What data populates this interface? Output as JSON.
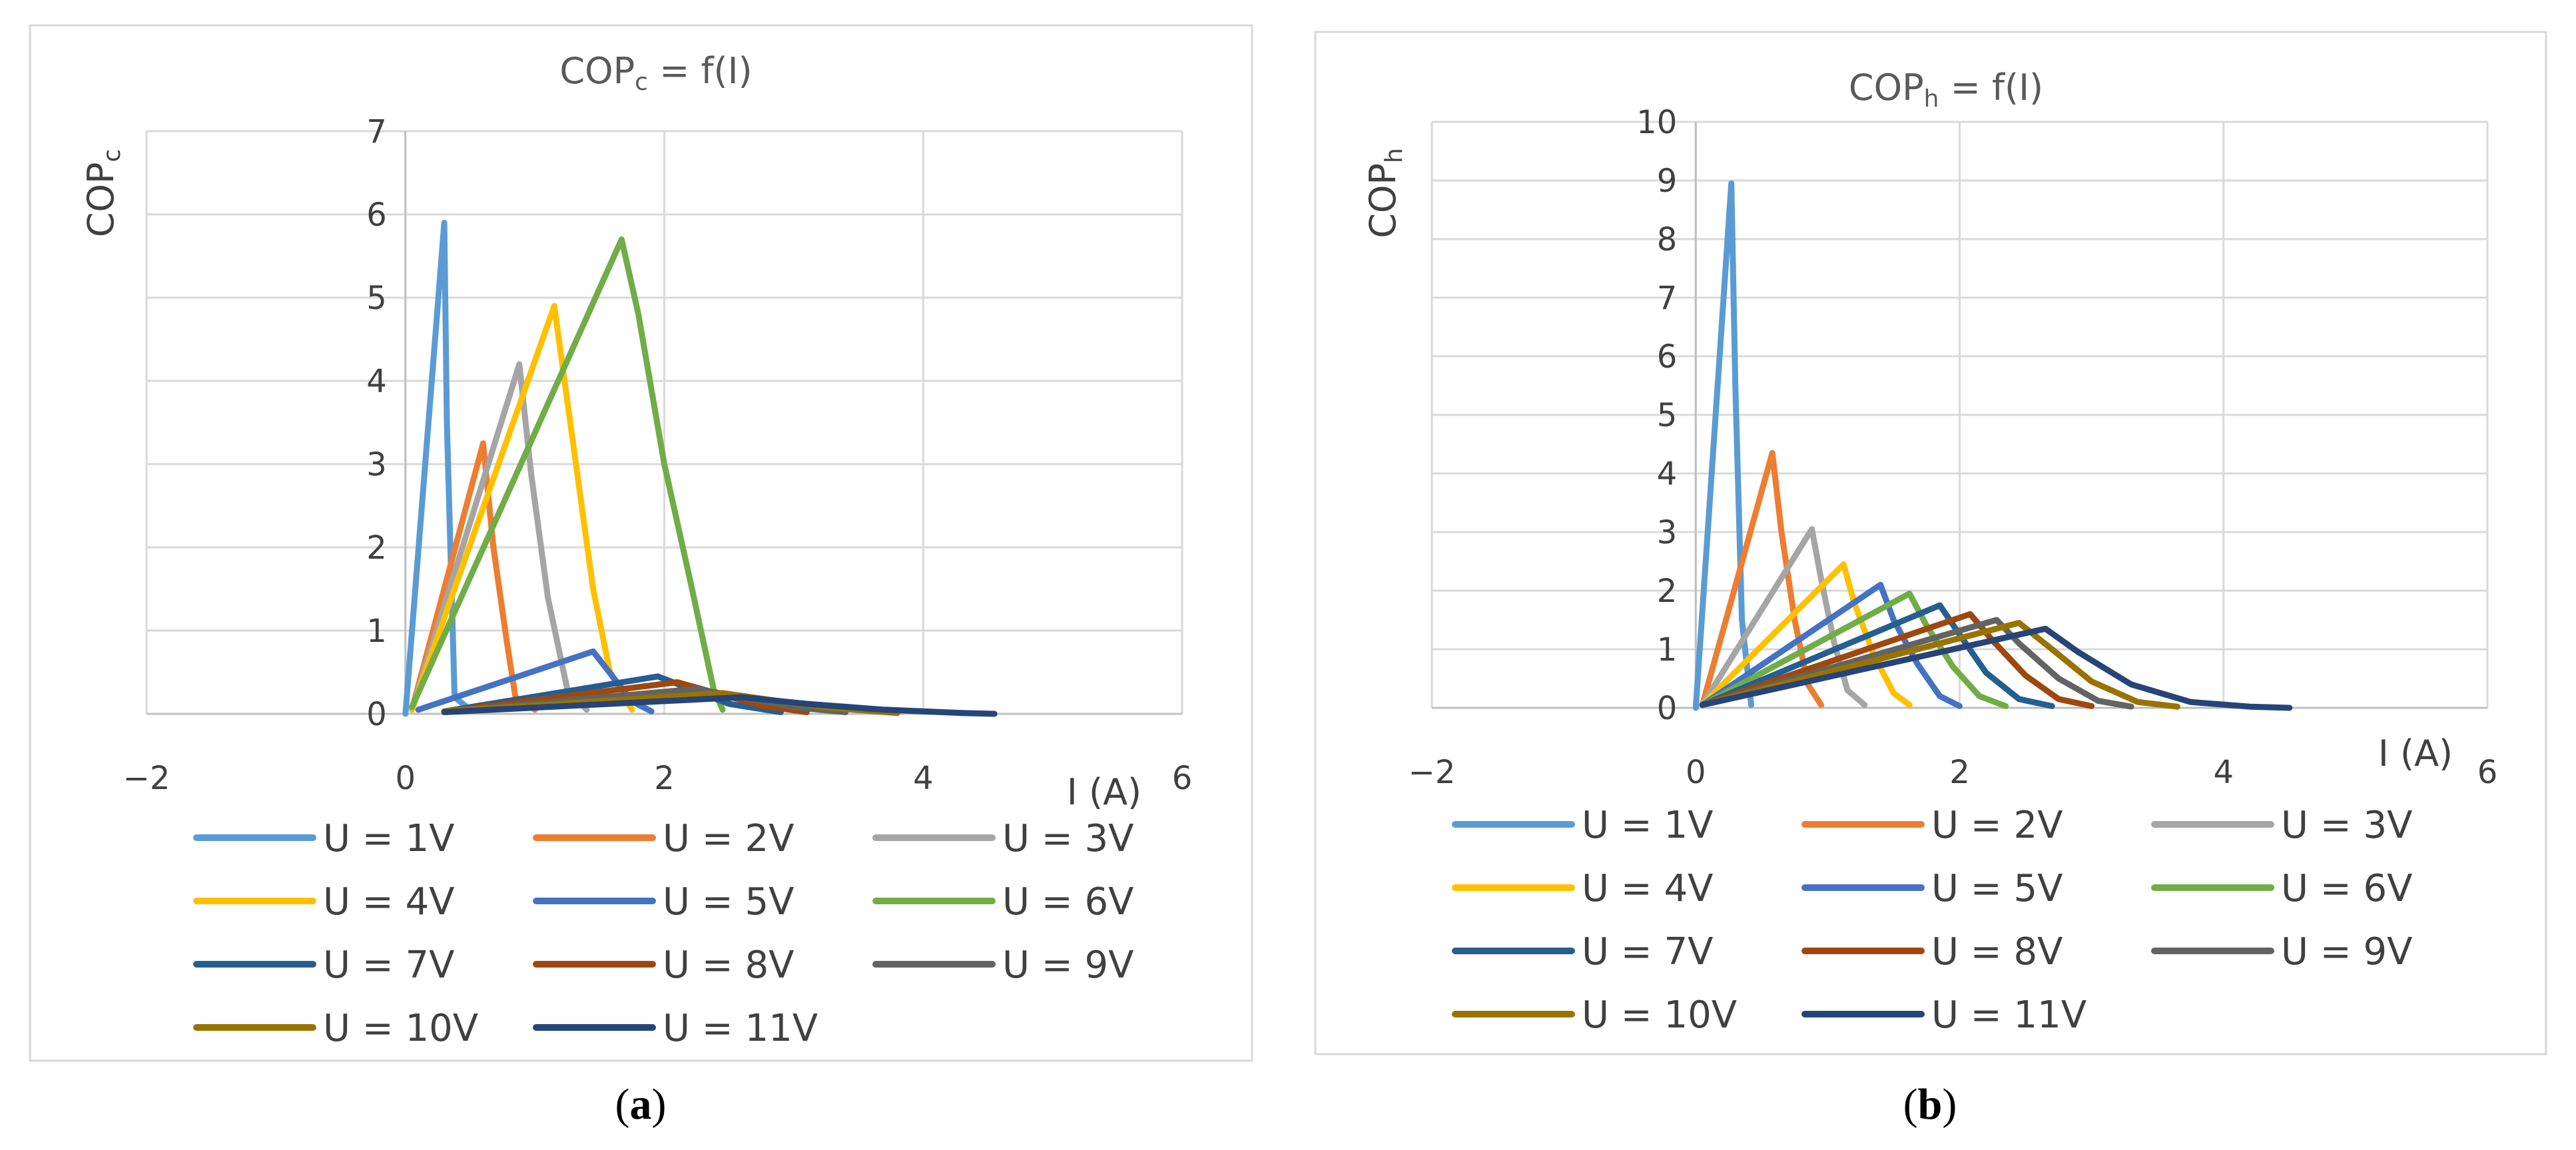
{
  "chart_data": [
    {
      "id": "a",
      "type": "line",
      "title": "COPc = f(I)",
      "title_main": "COP",
      "title_sub": "c",
      "title_tail": " = f(I)",
      "ylabel_main": "COP",
      "ylabel_sub": "c",
      "xlabel": "I (A)",
      "panel_label": "(a)",
      "panel_letter": "a",
      "xlim": [
        -2,
        6
      ],
      "ylim": [
        0,
        7
      ],
      "xticks": [
        -2,
        0,
        2,
        4,
        6
      ],
      "xtick_labels": [
        "−2",
        "0",
        "2",
        "4",
        "6"
      ],
      "yticks": [
        0,
        1,
        2,
        3,
        4,
        5,
        6,
        7
      ],
      "ytick_labels": [
        "0",
        "1",
        "2",
        "3",
        "4",
        "5",
        "6",
        "7"
      ],
      "legend_position": "bottom",
      "legend_columns": 3,
      "series": [
        {
          "name": "U = 1V",
          "color": "#5B9BD5",
          "x": [
            0.0,
            0.3,
            0.32,
            0.38,
            0.5
          ],
          "y": [
            0.0,
            5.9,
            3.5,
            0.2,
            0.05
          ]
        },
        {
          "name": "U = 2V",
          "color": "#ED7D31",
          "x": [
            0.05,
            0.6,
            0.68,
            0.78,
            0.85,
            1.0
          ],
          "y": [
            0.05,
            3.25,
            2.0,
            0.9,
            0.2,
            0.05
          ]
        },
        {
          "name": "U = 3V",
          "color": "#A5A5A5",
          "x": [
            0.05,
            0.88,
            0.97,
            1.1,
            1.25,
            1.4
          ],
          "y": [
            0.05,
            4.2,
            2.9,
            1.4,
            0.3,
            0.05
          ]
        },
        {
          "name": "U = 4V",
          "color": "#FFC000",
          "x": [
            0.05,
            1.15,
            1.3,
            1.45,
            1.58,
            1.75
          ],
          "y": [
            0.05,
            4.9,
            3.2,
            1.5,
            0.5,
            0.05
          ]
        },
        {
          "name": "U = 5V",
          "color": "#4472C4",
          "x": [
            0.1,
            1.45,
            1.6,
            1.75,
            1.9
          ],
          "y": [
            0.05,
            0.75,
            0.45,
            0.15,
            0.03
          ]
        },
        {
          "name": "U = 6V",
          "color": "#70AD47",
          "x": [
            0.05,
            1.67,
            1.8,
            2.0,
            2.2,
            2.38,
            2.45
          ],
          "y": [
            0.08,
            5.7,
            4.8,
            3.0,
            1.6,
            0.3,
            0.05
          ]
        },
        {
          "name": "U = 7V",
          "color": "#255E91",
          "x": [
            0.3,
            1.95,
            2.2,
            2.5,
            2.9
          ],
          "y": [
            0.03,
            0.45,
            0.3,
            0.12,
            0.02
          ]
        },
        {
          "name": "U = 8V",
          "color": "#9E480E",
          "x": [
            0.3,
            2.1,
            2.4,
            2.75,
            3.1
          ],
          "y": [
            0.03,
            0.38,
            0.25,
            0.1,
            0.02
          ]
        },
        {
          "name": "U = 9V",
          "color": "#636363",
          "x": [
            0.3,
            2.25,
            2.6,
            3.0,
            3.4
          ],
          "y": [
            0.03,
            0.3,
            0.2,
            0.08,
            0.02
          ]
        },
        {
          "name": "U = 10V",
          "color": "#997300",
          "x": [
            0.3,
            2.45,
            2.85,
            3.3,
            3.8
          ],
          "y": [
            0.03,
            0.25,
            0.16,
            0.07,
            0.01
          ]
        },
        {
          "name": "U = 11V",
          "color": "#264478",
          "x": [
            0.3,
            2.6,
            3.1,
            3.7,
            4.3,
            4.55
          ],
          "y": [
            0.02,
            0.2,
            0.12,
            0.05,
            0.01,
            0.0
          ]
        }
      ]
    },
    {
      "id": "b",
      "type": "line",
      "title": "COPh = f(I)",
      "title_main": "COP",
      "title_sub": "h",
      "title_tail": " = f(I)",
      "ylabel_main": "COP",
      "ylabel_sub": "h",
      "xlabel": "I (A)",
      "panel_label": "(b)",
      "panel_letter": "b",
      "xlim": [
        -2,
        6
      ],
      "ylim": [
        0,
        10
      ],
      "xticks": [
        -2,
        0,
        2,
        4,
        6
      ],
      "xtick_labels": [
        "−2",
        "0",
        "2",
        "4",
        "6"
      ],
      "yticks": [
        0,
        1,
        2,
        3,
        4,
        5,
        6,
        7,
        8,
        9,
        10
      ],
      "ytick_labels": [
        "0",
        "1",
        "2",
        "3",
        "4",
        "5",
        "6",
        "7",
        "8",
        "9",
        "10"
      ],
      "legend_position": "bottom",
      "legend_columns": 3,
      "series": [
        {
          "name": "U = 1V",
          "color": "#5B9BD5",
          "x": [
            0.0,
            0.27,
            0.3,
            0.35,
            0.42
          ],
          "y": [
            0.0,
            8.95,
            5.5,
            1.5,
            0.05
          ]
        },
        {
          "name": "U = 2V",
          "color": "#ED7D31",
          "x": [
            0.05,
            0.58,
            0.65,
            0.75,
            0.85,
            0.95
          ],
          "y": [
            0.05,
            4.35,
            3.0,
            1.5,
            0.4,
            0.05
          ]
        },
        {
          "name": "U = 3V",
          "color": "#A5A5A5",
          "x": [
            0.05,
            0.88,
            0.95,
            1.05,
            1.15,
            1.28
          ],
          "y": [
            0.05,
            3.05,
            2.2,
            1.1,
            0.3,
            0.05
          ]
        },
        {
          "name": "U = 4V",
          "color": "#FFC000",
          "x": [
            0.05,
            1.12,
            1.2,
            1.35,
            1.5,
            1.62
          ],
          "y": [
            0.05,
            2.45,
            1.8,
            0.9,
            0.25,
            0.05
          ]
        },
        {
          "name": "U = 5V",
          "color": "#4472C4",
          "x": [
            0.05,
            1.4,
            1.5,
            1.68,
            1.85,
            2.0
          ],
          "y": [
            0.05,
            2.1,
            1.5,
            0.75,
            0.2,
            0.03
          ]
        },
        {
          "name": "U = 6V",
          "color": "#70AD47",
          "x": [
            0.05,
            1.62,
            1.75,
            1.95,
            2.15,
            2.35
          ],
          "y": [
            0.05,
            1.95,
            1.4,
            0.7,
            0.2,
            0.03
          ]
        },
        {
          "name": "U = 7V",
          "color": "#255E91",
          "x": [
            0.05,
            1.85,
            2.0,
            2.2,
            2.45,
            2.7
          ],
          "y": [
            0.05,
            1.75,
            1.25,
            0.6,
            0.15,
            0.03
          ]
        },
        {
          "name": "U = 8V",
          "color": "#9E480E",
          "x": [
            0.05,
            2.08,
            2.25,
            2.5,
            2.75,
            3.0
          ],
          "y": [
            0.05,
            1.6,
            1.15,
            0.55,
            0.15,
            0.03
          ]
        },
        {
          "name": "U = 9V",
          "color": "#636363",
          "x": [
            0.05,
            2.28,
            2.45,
            2.75,
            3.05,
            3.3
          ],
          "y": [
            0.05,
            1.5,
            1.1,
            0.5,
            0.12,
            0.02
          ]
        },
        {
          "name": "U = 10V",
          "color": "#997300",
          "x": [
            0.05,
            2.45,
            2.7,
            3.0,
            3.35,
            3.65
          ],
          "y": [
            0.05,
            1.45,
            1.0,
            0.45,
            0.1,
            0.02
          ]
        },
        {
          "name": "U = 11V",
          "color": "#264478",
          "x": [
            0.05,
            2.65,
            2.9,
            3.3,
            3.75,
            4.2,
            4.5
          ],
          "y": [
            0.05,
            1.35,
            0.95,
            0.4,
            0.1,
            0.02,
            0.0
          ]
        }
      ]
    }
  ]
}
